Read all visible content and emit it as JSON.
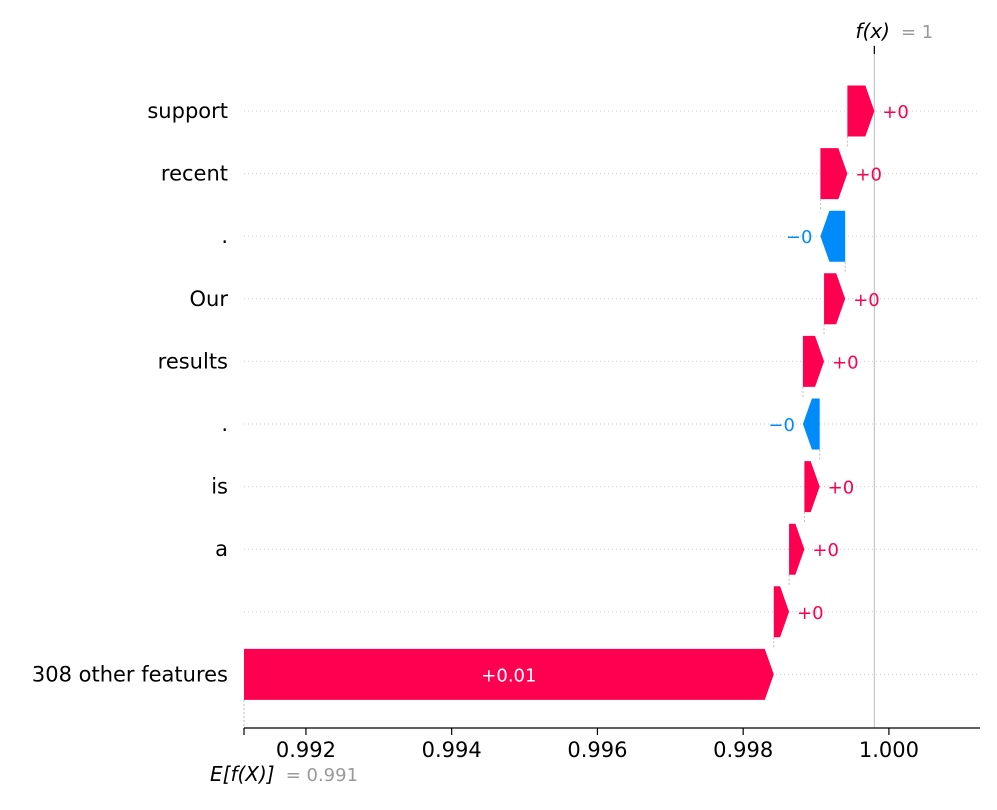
{
  "chart_data": {
    "type": "waterfall",
    "features": [
      {
        "name": "support",
        "label": "+0",
        "start": 0.9998,
        "value": -0.00037
      },
      {
        "name": "recent",
        "label": "+0",
        "start": 0.99943,
        "value": -0.00037
      },
      {
        "name": ".",
        "label": "−0",
        "start": 0.99906,
        "value": 0.00034
      },
      {
        "name": "Our",
        "label": "+0",
        "start": 0.9994,
        "value": -0.00029
      },
      {
        "name": "results",
        "label": "+0",
        "start": 0.99911,
        "value": -0.00029
      },
      {
        "name": ".",
        "label": "−0",
        "start": 0.99882,
        "value": 0.00023
      },
      {
        "name": "is",
        "label": "+0",
        "start": 0.99905,
        "value": -0.00021
      },
      {
        "name": "a",
        "label": "+0",
        "start": 0.99884,
        "value": -0.00021
      },
      {
        "name": "",
        "label": "+0",
        "start": 0.99863,
        "value": -0.00021
      },
      {
        "name": "308 other features",
        "label": "+0.01",
        "start": 0.99842,
        "value": -0.00727
      }
    ],
    "xticks": [
      0.992,
      0.994,
      0.996,
      0.998,
      1.0
    ],
    "xtick_labels": [
      "0.992",
      "0.994",
      "0.996",
      "0.998",
      "1.000"
    ],
    "xlim": [
      0.99115,
      1.00125
    ],
    "fx": {
      "label": "f(x)",
      "value_text": "= 1",
      "value": 0.9998
    },
    "base": {
      "label": "E[f(X)]",
      "value_text": "= 0.991",
      "value": 0.99115
    },
    "colors": {
      "positive": "#ff0051",
      "negative": "#008bfb"
    }
  }
}
